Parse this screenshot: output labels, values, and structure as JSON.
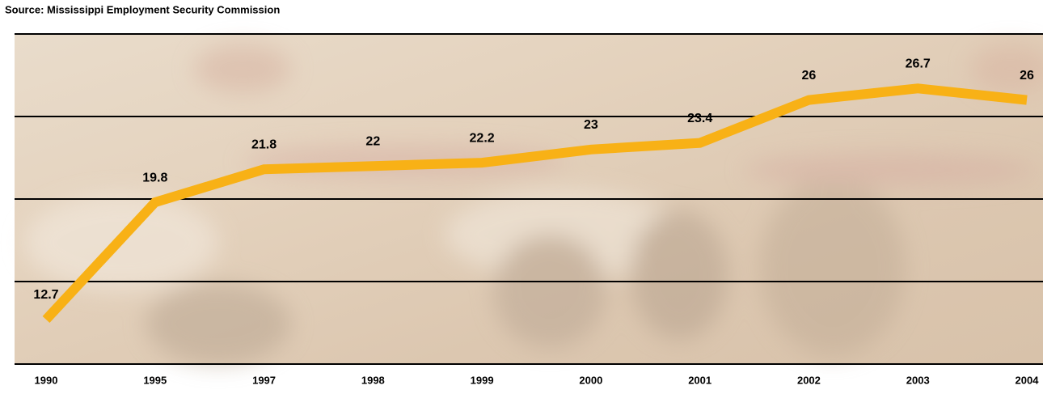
{
  "chart_data": {
    "type": "line",
    "source": "Source: Mississippi Employment Security Commission",
    "categories": [
      "1990",
      "1995",
      "1997",
      "1998",
      "1999",
      "2000",
      "2001",
      "2002",
      "2003",
      "2004"
    ],
    "values": [
      12.7,
      19.8,
      21.8,
      22,
      22.2,
      23,
      23.4,
      26,
      26.7,
      26
    ],
    "color": "#f8b116",
    "ylim": [
      10,
      30
    ],
    "yticks": [
      10,
      15,
      20,
      25,
      30
    ],
    "grid": true
  }
}
